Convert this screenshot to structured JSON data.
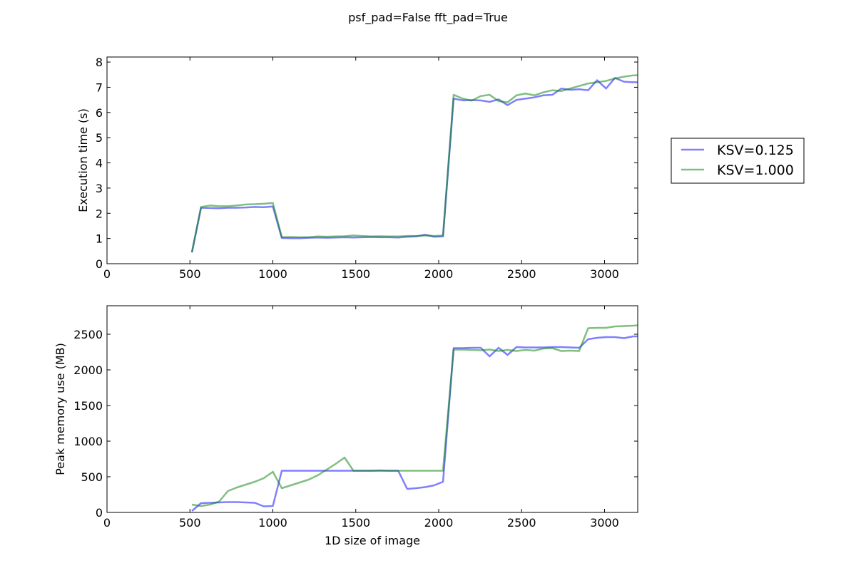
{
  "figure": {
    "suptitle": "psf_pad=False fft_pad=True"
  },
  "chart_data": [
    {
      "type": "line",
      "ylabel": "Execution time (s)",
      "xlabel": "",
      "xlim": [
        0,
        3200
      ],
      "ylim": [
        0,
        8.2
      ],
      "xticks": [
        0,
        500,
        1000,
        1500,
        2000,
        2500,
        3000
      ],
      "yticks": [
        0,
        1,
        2,
        3,
        4,
        5,
        6,
        7,
        8
      ],
      "series": [
        {
          "name": "KSV=0.125",
          "color": "#0000ff",
          "x": [
            512,
            567,
            621,
            675,
            729,
            783,
            837,
            891,
            945,
            1000,
            1054,
            1108,
            1162,
            1216,
            1270,
            1324,
            1378,
            1432,
            1486,
            1540,
            1594,
            1648,
            1702,
            1756,
            1810,
            1864,
            1918,
            1972,
            2026,
            2090,
            2145,
            2199,
            2253,
            2307,
            2361,
            2415,
            2469,
            2523,
            2577,
            2631,
            2685,
            2739,
            2793,
            2847,
            2901,
            2955,
            3009,
            3063,
            3117,
            3171,
            3200
          ],
          "values": [
            0.45,
            2.22,
            2.21,
            2.2,
            2.22,
            2.22,
            2.23,
            2.25,
            2.24,
            2.27,
            1.02,
            1.01,
            1.01,
            1.03,
            1.04,
            1.03,
            1.04,
            1.05,
            1.04,
            1.05,
            1.06,
            1.05,
            1.05,
            1.04,
            1.07,
            1.08,
            1.15,
            1.07,
            1.08,
            6.55,
            6.48,
            6.49,
            6.48,
            6.42,
            6.52,
            6.29,
            6.5,
            6.55,
            6.6,
            6.68,
            6.7,
            6.95,
            6.9,
            6.92,
            6.88,
            7.28,
            6.95,
            7.37,
            7.22,
            7.2,
            7.2
          ]
        },
        {
          "name": "KSV=1.000",
          "color": "#008000",
          "x": [
            512,
            567,
            621,
            675,
            729,
            783,
            837,
            891,
            945,
            1000,
            1054,
            1108,
            1162,
            1216,
            1270,
            1324,
            1378,
            1432,
            1486,
            1540,
            1594,
            1648,
            1702,
            1756,
            1810,
            1864,
            1918,
            1972,
            2026,
            2090,
            2145,
            2199,
            2253,
            2307,
            2361,
            2415,
            2469,
            2523,
            2577,
            2631,
            2685,
            2739,
            2793,
            2847,
            2901,
            2955,
            3009,
            3063,
            3117,
            3171,
            3200
          ],
          "values": [
            0.45,
            2.25,
            2.31,
            2.28,
            2.28,
            2.31,
            2.35,
            2.36,
            2.38,
            2.41,
            1.05,
            1.06,
            1.05,
            1.05,
            1.08,
            1.07,
            1.08,
            1.09,
            1.12,
            1.1,
            1.08,
            1.09,
            1.08,
            1.08,
            1.1,
            1.1,
            1.12,
            1.1,
            1.12,
            6.7,
            6.55,
            6.47,
            6.65,
            6.7,
            6.45,
            6.4,
            6.68,
            6.75,
            6.68,
            6.8,
            6.88,
            6.85,
            6.95,
            7.05,
            7.15,
            7.2,
            7.25,
            7.35,
            7.42,
            7.47,
            7.48
          ]
        }
      ],
      "legend": {
        "placement": "outside-right"
      },
      "grid": false
    },
    {
      "type": "line",
      "ylabel": "Peak memory use (MB)",
      "xlabel": "1D size of image",
      "xlim": [
        0,
        3200
      ],
      "ylim": [
        0,
        2900
      ],
      "xticks": [
        0,
        500,
        1000,
        1500,
        2000,
        2500,
        3000
      ],
      "yticks": [
        0,
        500,
        1000,
        1500,
        2000,
        2500
      ],
      "series": [
        {
          "name": "KSV=0.125",
          "color": "#0000ff",
          "x": [
            512,
            567,
            621,
            675,
            729,
            783,
            837,
            891,
            945,
            1000,
            1054,
            1108,
            1162,
            1216,
            1270,
            1324,
            1378,
            1432,
            1486,
            1540,
            1594,
            1648,
            1702,
            1756,
            1810,
            1864,
            1918,
            1972,
            2026,
            2090,
            2145,
            2199,
            2253,
            2307,
            2361,
            2415,
            2469,
            2523,
            2577,
            2631,
            2685,
            2739,
            2793,
            2847,
            2901,
            2955,
            3009,
            3063,
            3117,
            3171,
            3200
          ],
          "values": [
            20,
            130,
            135,
            140,
            145,
            145,
            140,
            135,
            85,
            90,
            585,
            585,
            585,
            585,
            585,
            585,
            585,
            585,
            585,
            585,
            585,
            585,
            585,
            585,
            330,
            340,
            355,
            380,
            430,
            2305,
            2305,
            2310,
            2310,
            2190,
            2310,
            2210,
            2320,
            2315,
            2315,
            2315,
            2320,
            2320,
            2315,
            2310,
            2430,
            2450,
            2460,
            2460,
            2445,
            2470,
            2470
          ]
        },
        {
          "name": "KSV=1.000",
          "color": "#008000",
          "x": [
            512,
            567,
            621,
            675,
            729,
            783,
            837,
            891,
            945,
            1000,
            1054,
            1108,
            1162,
            1216,
            1270,
            1324,
            1378,
            1432,
            1486,
            1540,
            1594,
            1648,
            1702,
            1756,
            1810,
            1864,
            1918,
            1972,
            2026,
            2090,
            2145,
            2199,
            2253,
            2307,
            2361,
            2415,
            2469,
            2523,
            2577,
            2631,
            2685,
            2739,
            2793,
            2847,
            2901,
            2955,
            3009,
            3063,
            3117,
            3171,
            3200
          ],
          "values": [
            110,
            90,
            110,
            150,
            300,
            350,
            390,
            430,
            480,
            570,
            340,
            380,
            420,
            460,
            520,
            600,
            680,
            770,
            585,
            585,
            585,
            590,
            585,
            585,
            585,
            585,
            585,
            585,
            585,
            2285,
            2285,
            2280,
            2275,
            2285,
            2265,
            2280,
            2265,
            2280,
            2270,
            2300,
            2305,
            2265,
            2270,
            2265,
            2585,
            2590,
            2590,
            2610,
            2615,
            2620,
            2625
          ]
        }
      ],
      "grid": false
    }
  ]
}
